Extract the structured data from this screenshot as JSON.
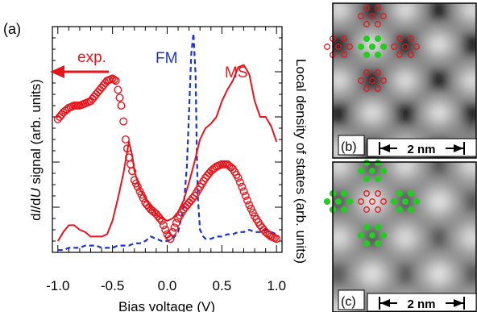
{
  "panel_a": {
    "label": "(a)",
    "ylabel_left_prefix": "d",
    "ylabel_left_italic1": "I",
    "ylabel_left_mid": "/d",
    "ylabel_left_italic2": "U",
    "ylabel_left_suffix": " signal  (arb. units)",
    "ylabel_right": "Local density of states  (arb. units)",
    "annotations": {
      "exp": "exp.",
      "fm": "FM",
      "ms": "MS"
    }
  },
  "panel_b": {
    "label": "(b)",
    "scale_text": "2 nm"
  },
  "panel_c": {
    "label": "(c)",
    "scale_text": "2 nm"
  },
  "colors": {
    "exp": "#e8141c",
    "ms": "#e8141c",
    "fm": "#1a36c8",
    "atom_red": "#e8141c",
    "atom_green": "#22cc22"
  },
  "chart_data": {
    "type": "line",
    "xlabel": "Bias voltage (V)",
    "ylabel": "dI/dU signal  (arb. units)",
    "xlim": [
      -1.05,
      1.05
    ],
    "ylim": [
      0,
      1
    ],
    "xticks": [
      -1.0,
      -0.5,
      0.0,
      0.5,
      1.0
    ],
    "xtick_labels": [
      "-1.0",
      "-0.5",
      "0.0",
      "0.5",
      "1.0"
    ],
    "series": [
      {
        "name": "exp.",
        "style": "circles",
        "x": [
          -1.0,
          -0.95,
          -0.9,
          -0.85,
          -0.8,
          -0.75,
          -0.7,
          -0.65,
          -0.6,
          -0.55,
          -0.5,
          -0.47,
          -0.45,
          -0.42,
          -0.4,
          -0.38,
          -0.35,
          -0.32,
          -0.3,
          -0.27,
          -0.25,
          -0.22,
          -0.2,
          -0.15,
          -0.1,
          -0.05,
          0.0,
          0.03,
          0.05,
          0.1,
          0.15,
          0.2,
          0.25,
          0.3,
          0.35,
          0.4,
          0.45,
          0.5,
          0.55,
          0.6,
          0.65,
          0.7,
          0.75,
          0.8,
          0.85,
          0.9,
          0.95,
          1.0
        ],
        "y": [
          0.59,
          0.62,
          0.64,
          0.65,
          0.65,
          0.66,
          0.67,
          0.7,
          0.73,
          0.76,
          0.77,
          0.76,
          0.72,
          0.65,
          0.58,
          0.5,
          0.42,
          0.36,
          0.32,
          0.29,
          0.27,
          0.24,
          0.22,
          0.19,
          0.17,
          0.14,
          0.08,
          0.06,
          0.09,
          0.15,
          0.19,
          0.22,
          0.25,
          0.29,
          0.33,
          0.36,
          0.38,
          0.39,
          0.39,
          0.37,
          0.33,
          0.27,
          0.21,
          0.16,
          0.12,
          0.09,
          0.07,
          0.06
        ]
      },
      {
        "name": "MS",
        "style": "solid",
        "x": [
          -1.0,
          -0.95,
          -0.9,
          -0.85,
          -0.8,
          -0.75,
          -0.7,
          -0.65,
          -0.6,
          -0.55,
          -0.5,
          -0.45,
          -0.4,
          -0.35,
          -0.32,
          -0.3,
          -0.27,
          -0.25,
          -0.2,
          -0.15,
          -0.1,
          -0.05,
          0.0,
          0.05,
          0.1,
          0.15,
          0.2,
          0.25,
          0.3,
          0.35,
          0.4,
          0.45,
          0.5,
          0.55,
          0.6,
          0.65,
          0.7,
          0.75,
          0.8,
          0.85,
          0.9,
          0.95,
          1.0
        ],
        "y": [
          0.05,
          0.09,
          0.12,
          0.12,
          0.1,
          0.09,
          0.07,
          0.07,
          0.07,
          0.08,
          0.14,
          0.24,
          0.35,
          0.49,
          0.43,
          0.36,
          0.31,
          0.28,
          0.24,
          0.2,
          0.17,
          0.15,
          0.14,
          0.15,
          0.18,
          0.23,
          0.31,
          0.4,
          0.5,
          0.55,
          0.57,
          0.6,
          0.67,
          0.72,
          0.76,
          0.82,
          0.83,
          0.79,
          0.67,
          0.6,
          0.6,
          0.56,
          0.49
        ]
      },
      {
        "name": "FM",
        "style": "dashed",
        "x": [
          -1.0,
          -0.95,
          -0.9,
          -0.85,
          -0.8,
          -0.75,
          -0.7,
          -0.65,
          -0.6,
          -0.55,
          -0.5,
          -0.45,
          -0.4,
          -0.35,
          -0.3,
          -0.25,
          -0.2,
          -0.15,
          -0.1,
          -0.05,
          0.0,
          0.05,
          0.1,
          0.15,
          0.18,
          0.2,
          0.22,
          0.24,
          0.26,
          0.27,
          0.28,
          0.3,
          0.33,
          0.35,
          0.4,
          0.45,
          0.5,
          0.55,
          0.6,
          0.65,
          0.7,
          0.75,
          0.8,
          0.85,
          0.9,
          0.95,
          1.0
        ],
        "y": [
          0.01,
          0.01,
          0.02,
          0.02,
          0.02,
          0.03,
          0.03,
          0.03,
          0.02,
          0.02,
          0.02,
          0.03,
          0.03,
          0.03,
          0.04,
          0.04,
          0.05,
          0.07,
          0.06,
          0.05,
          0.05,
          0.06,
          0.09,
          0.2,
          0.38,
          0.62,
          0.88,
          0.97,
          0.78,
          0.48,
          0.25,
          0.1,
          0.07,
          0.06,
          0.06,
          0.07,
          0.07,
          0.08,
          0.08,
          0.09,
          0.09,
          0.1,
          0.09,
          0.09,
          0.1,
          0.09,
          0.08
        ]
      }
    ]
  }
}
